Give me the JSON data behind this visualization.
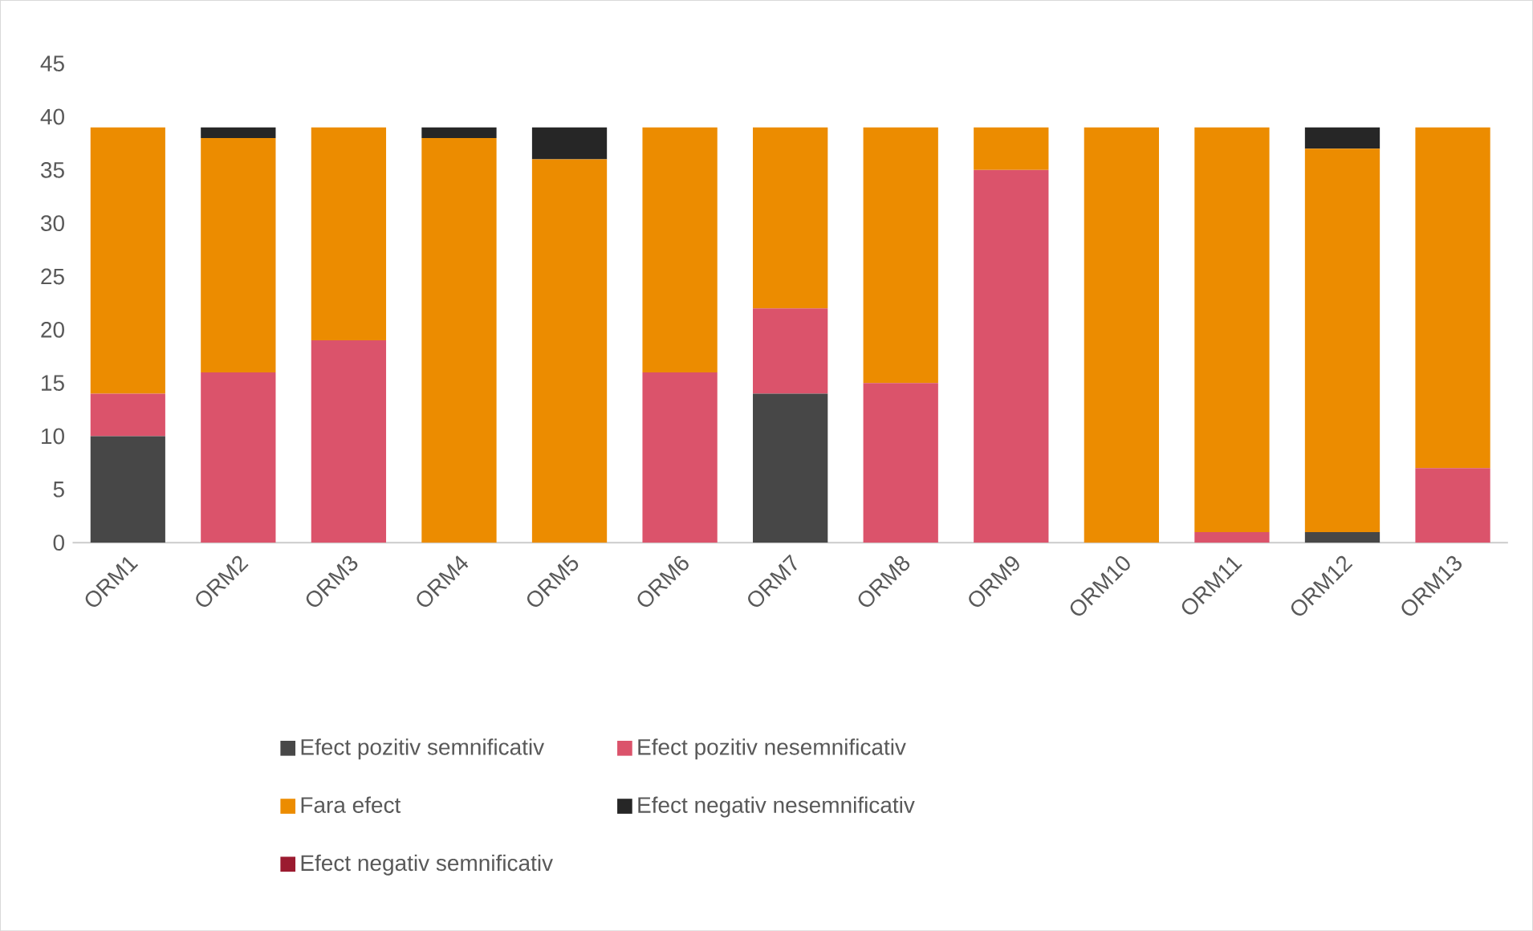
{
  "chart_data": {
    "type": "bar",
    "stacked": true,
    "categories": [
      "ORM1",
      "ORM2",
      "ORM3",
      "ORM4",
      "ORM5",
      "ORM6",
      "ORM7",
      "ORM8",
      "ORM9",
      "ORM10",
      "ORM11",
      "ORM12",
      "ORM13"
    ],
    "series": [
      {
        "name": "Efect pozitiv semnificativ",
        "color": "#474747",
        "values": [
          10,
          0,
          0,
          0,
          0,
          0,
          14,
          0,
          0,
          0,
          0,
          1,
          0
        ]
      },
      {
        "name": "Efect pozitiv nesemnificativ",
        "color": "#db536b",
        "values": [
          4,
          16,
          19,
          0,
          0,
          16,
          8,
          15,
          35,
          0,
          1,
          0,
          7
        ]
      },
      {
        "name": "Fara efect",
        "color": "#ec8c00",
        "values": [
          25,
          22,
          20,
          38,
          36,
          23,
          17,
          24,
          4,
          39,
          38,
          36,
          32
        ]
      },
      {
        "name": "Efect negativ nesemnificativ",
        "color": "#262626",
        "values": [
          0,
          1,
          0,
          1,
          3,
          0,
          0,
          0,
          0,
          0,
          0,
          2,
          0
        ]
      },
      {
        "name": "Efect negativ semnificativ",
        "color": "#9b1b30",
        "values": [
          0,
          0,
          0,
          0,
          0,
          0,
          0,
          0,
          0,
          0,
          0,
          0,
          0
        ]
      }
    ],
    "ylim": [
      0,
      45
    ],
    "yticks": [
      0,
      5,
      10,
      15,
      20,
      25,
      30,
      35,
      40,
      45
    ],
    "grid": false,
    "legend": "bottom"
  }
}
